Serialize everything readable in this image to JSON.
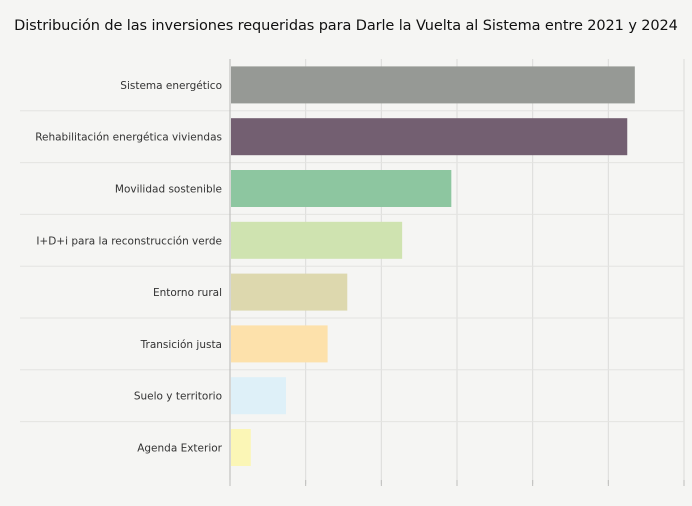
{
  "chart_data": {
    "type": "bar",
    "orientation": "horizontal",
    "title": "Distribución de las inversiones requeridas para Darle la Vuelta al Sistema entre 2021 y 2024",
    "categories": [
      "Sistema energético",
      "Rehabilitación energética viviendas",
      "Movilidad sostenible",
      "I+D+i para la reconstrucción verde",
      "Entorno rural",
      "Transición justa",
      "Suelo y territorio",
      "Agenda Exterior"
    ],
    "values": [
      107,
      105,
      58.5,
      45.5,
      31,
      25.8,
      14.8,
      5.5
    ],
    "colors": [
      "#969995",
      "#735f71",
      "#8dc6a0",
      "#cfe3b0",
      "#ddd8ae",
      "#fde1ab",
      "#def0f8",
      "#fbf6b6"
    ],
    "xlim": [
      0,
      120
    ],
    "grid": true,
    "xlabel": "",
    "ylabel": ""
  }
}
